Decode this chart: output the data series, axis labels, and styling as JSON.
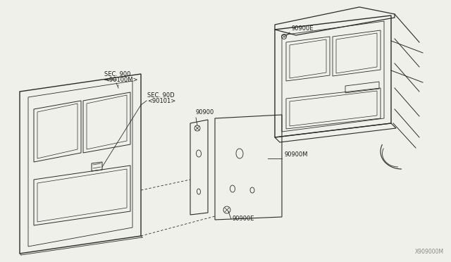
{
  "bg_color": "#f0f0eb",
  "line_color": "#2a2a2a",
  "text_color": "#1a1a1a",
  "watermark": "X909000M",
  "labels": {
    "sec900": "SEC. 900",
    "sec900_sub": "<90100M>",
    "sec90d": "SEC. 90D",
    "sec90d_sub": "<90101>",
    "label_90900E_top": "90900E",
    "label_90900": "90900",
    "label_90900M": "90900M",
    "label_90900E_bot": "90900E"
  },
  "font_size": 6.0
}
